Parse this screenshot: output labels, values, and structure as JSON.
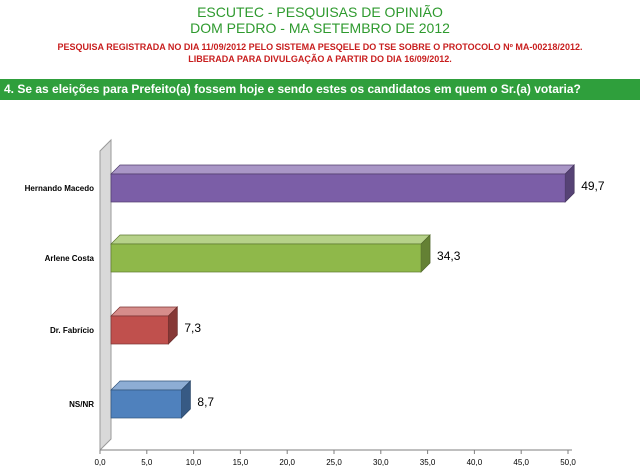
{
  "header": {
    "title_line1": "ESCUTEC - PESQUISAS DE OPINIÃO",
    "title_line2": "DOM PEDRO - MA SETEMBRO DE 2012",
    "registration_line1": "PESQUISA REGISTRADA NO DIA 11/09/2012 PELO SISTEMA PESQELE DO TSE SOBRE O PROTOCOLO Nº MA-00218/2012.",
    "registration_line2": "LIBERADA PARA DIVULGAÇÃO A PARTIR DO DIA 16/09/2012."
  },
  "question": "4. Se as eleições para Prefeito(a) fossem hoje e sendo estes os candidatos em quem o Sr.(a) votaria?",
  "colors": {
    "title": "#2e9a2e",
    "note": "#c81e1e",
    "question_band": "#2f9f3c"
  },
  "chart_data": {
    "type": "bar",
    "orientation": "horizontal",
    "categories": [
      "Hernando Macedo",
      "Arlene Costa",
      "Dr. Fabrício",
      "NS/NR"
    ],
    "values": [
      49.7,
      34.3,
      7.3,
      8.7
    ],
    "value_labels": [
      "49,7",
      "34,3",
      "7,3",
      "8,7"
    ],
    "colors": [
      "#7b5ea7",
      "#8fb84a",
      "#c0504d",
      "#4f81bd"
    ],
    "xlim": [
      0,
      50
    ],
    "x_ticks": [
      "0,0",
      "5,0",
      "10,0",
      "15,0",
      "20,0",
      "25,0",
      "30,0",
      "35,0",
      "40,0",
      "45,0",
      "50,0"
    ],
    "grid": false,
    "style": "3d"
  }
}
